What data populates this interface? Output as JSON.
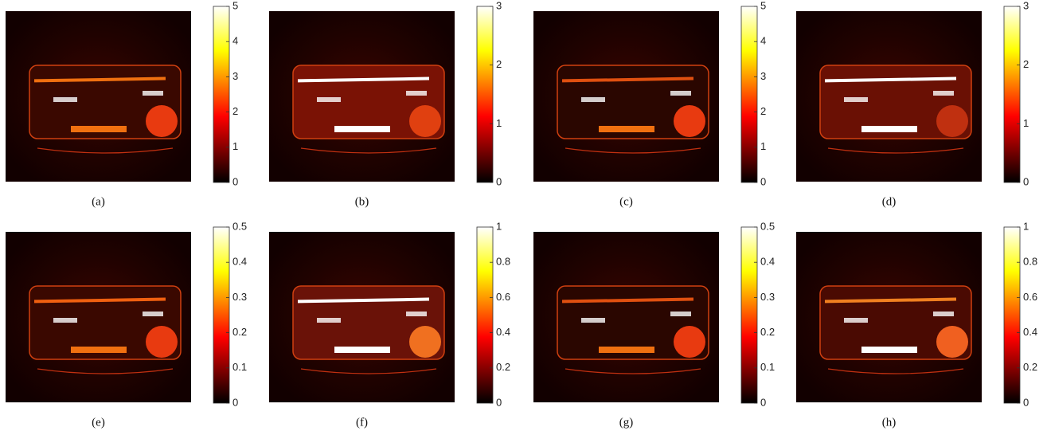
{
  "panels": [
    {
      "label": "(a)",
      "clim": [
        0,
        5
      ],
      "ticks": [
        0,
        1,
        2,
        3,
        4,
        5
      ]
    },
    {
      "label": "(b)",
      "clim": [
        0,
        3
      ],
      "ticks": [
        0,
        1,
        2,
        3
      ]
    },
    {
      "label": "(c)",
      "clim": [
        0,
        5
      ],
      "ticks": [
        0,
        1,
        2,
        3,
        4,
        5
      ]
    },
    {
      "label": "(d)",
      "clim": [
        0,
        3
      ],
      "ticks": [
        0,
        1,
        2,
        3
      ]
    },
    {
      "label": "(e)",
      "clim": [
        0,
        0.5
      ],
      "ticks": [
        0,
        0.1,
        0.2,
        0.3,
        0.4,
        0.5
      ]
    },
    {
      "label": "(f)",
      "clim": [
        0,
        1
      ],
      "ticks": [
        0,
        0.2,
        0.4,
        0.6,
        0.8,
        1
      ]
    },
    {
      "label": "(g)",
      "clim": [
        0,
        0.5
      ],
      "ticks": [
        0,
        0.1,
        0.2,
        0.3,
        0.4,
        0.5
      ]
    },
    {
      "label": "(h)",
      "clim": [
        0,
        1
      ],
      "ticks": [
        0,
        0.2,
        0.4,
        0.6,
        0.8,
        1
      ]
    }
  ]
}
